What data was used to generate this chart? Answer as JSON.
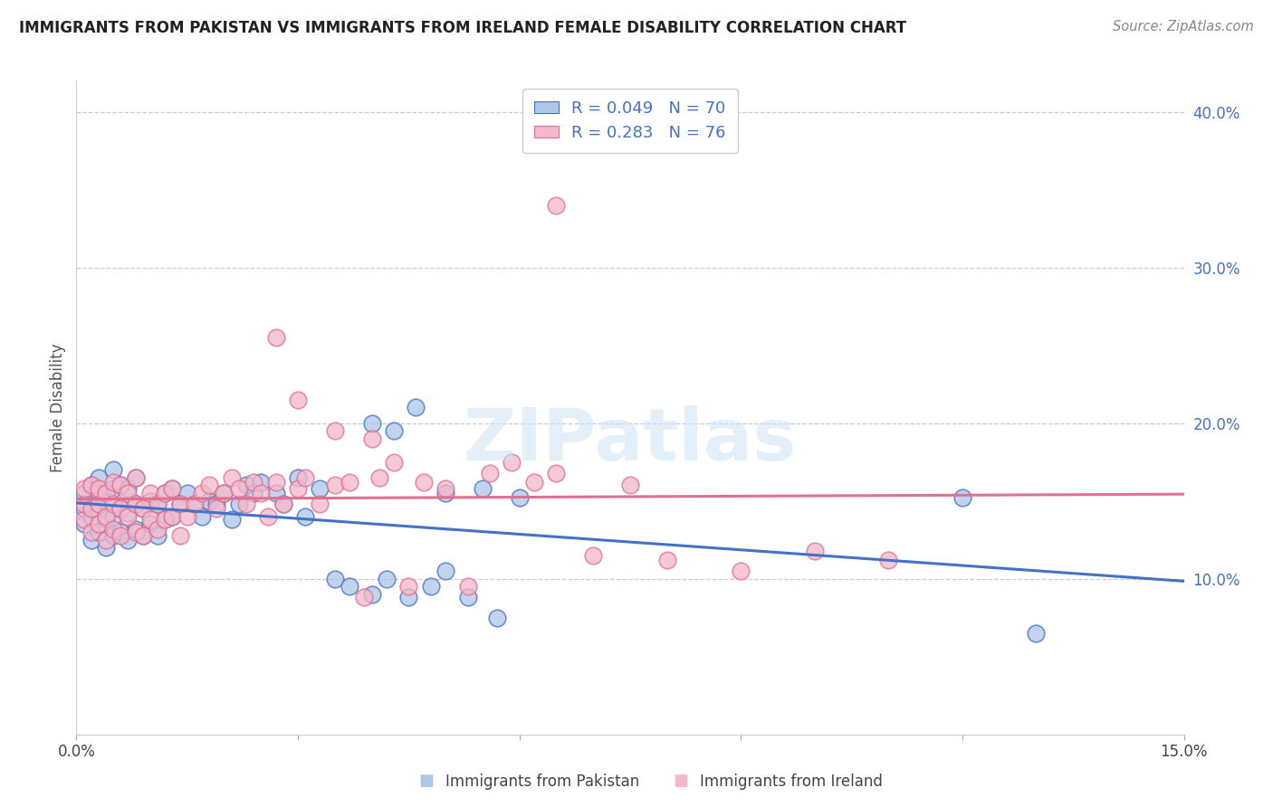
{
  "title": "IMMIGRANTS FROM PAKISTAN VS IMMIGRANTS FROM IRELAND FEMALE DISABILITY CORRELATION CHART",
  "source": "Source: ZipAtlas.com",
  "ylabel_label": "Female Disability",
  "legend_label1": "Immigrants from Pakistan",
  "legend_label2": "Immigrants from Ireland",
  "R1": 0.049,
  "N1": 70,
  "R2": 0.283,
  "N2": 76,
  "color_blue": "#aec6e8",
  "color_pink": "#f5b8cb",
  "color_blue_edge": "#4472c4",
  "color_pink_edge": "#e07090",
  "color_blue_text": "#4472c4",
  "xlim": [
    0.0,
    0.15
  ],
  "ylim": [
    0.0,
    0.42
  ],
  "y_ticks_right": [
    0.1,
    0.2,
    0.3,
    0.4
  ],
  "y_tick_labels_right": [
    "10.0%",
    "20.0%",
    "30.0%",
    "40.0%"
  ],
  "pakistan_x": [
    0.001,
    0.001,
    0.001,
    0.002,
    0.002,
    0.002,
    0.003,
    0.003,
    0.003,
    0.003,
    0.004,
    0.004,
    0.004,
    0.005,
    0.005,
    0.005,
    0.005,
    0.006,
    0.006,
    0.006,
    0.007,
    0.007,
    0.007,
    0.008,
    0.008,
    0.008,
    0.009,
    0.009,
    0.01,
    0.01,
    0.011,
    0.011,
    0.012,
    0.012,
    0.013,
    0.013,
    0.014,
    0.015,
    0.016,
    0.017,
    0.018,
    0.019,
    0.02,
    0.021,
    0.022,
    0.023,
    0.024,
    0.025,
    0.027,
    0.028,
    0.03,
    0.031,
    0.033,
    0.035,
    0.037,
    0.04,
    0.042,
    0.045,
    0.048,
    0.05,
    0.053,
    0.057,
    0.04,
    0.043,
    0.046,
    0.05,
    0.055,
    0.06,
    0.12,
    0.13
  ],
  "pakistan_y": [
    0.135,
    0.145,
    0.155,
    0.125,
    0.14,
    0.16,
    0.13,
    0.148,
    0.155,
    0.165,
    0.12,
    0.138,
    0.15,
    0.128,
    0.14,
    0.158,
    0.17,
    0.13,
    0.145,
    0.16,
    0.125,
    0.142,
    0.158,
    0.132,
    0.148,
    0.165,
    0.128,
    0.145,
    0.135,
    0.15,
    0.128,
    0.148,
    0.138,
    0.155,
    0.14,
    0.158,
    0.148,
    0.155,
    0.148,
    0.14,
    0.15,
    0.148,
    0.155,
    0.138,
    0.148,
    0.16,
    0.155,
    0.162,
    0.155,
    0.148,
    0.165,
    0.14,
    0.158,
    0.1,
    0.095,
    0.09,
    0.1,
    0.088,
    0.095,
    0.105,
    0.088,
    0.075,
    0.2,
    0.195,
    0.21,
    0.155,
    0.158,
    0.152,
    0.152,
    0.065
  ],
  "ireland_x": [
    0.001,
    0.001,
    0.001,
    0.002,
    0.002,
    0.002,
    0.003,
    0.003,
    0.003,
    0.004,
    0.004,
    0.004,
    0.005,
    0.005,
    0.005,
    0.006,
    0.006,
    0.006,
    0.007,
    0.007,
    0.008,
    0.008,
    0.008,
    0.009,
    0.009,
    0.01,
    0.01,
    0.011,
    0.011,
    0.012,
    0.012,
    0.013,
    0.013,
    0.014,
    0.014,
    0.015,
    0.016,
    0.017,
    0.018,
    0.019,
    0.02,
    0.021,
    0.022,
    0.023,
    0.024,
    0.025,
    0.026,
    0.027,
    0.028,
    0.03,
    0.031,
    0.033,
    0.035,
    0.037,
    0.039,
    0.041,
    0.043,
    0.045,
    0.047,
    0.05,
    0.053,
    0.056,
    0.059,
    0.062,
    0.065,
    0.07,
    0.075,
    0.08,
    0.09,
    0.1,
    0.027,
    0.03,
    0.035,
    0.04,
    0.065,
    0.11
  ],
  "ireland_y": [
    0.138,
    0.148,
    0.158,
    0.13,
    0.145,
    0.16,
    0.135,
    0.148,
    0.158,
    0.125,
    0.14,
    0.155,
    0.132,
    0.148,
    0.162,
    0.128,
    0.145,
    0.16,
    0.14,
    0.155,
    0.13,
    0.148,
    0.165,
    0.128,
    0.145,
    0.138,
    0.155,
    0.132,
    0.148,
    0.138,
    0.155,
    0.14,
    0.158,
    0.128,
    0.148,
    0.14,
    0.148,
    0.155,
    0.16,
    0.145,
    0.155,
    0.165,
    0.158,
    0.148,
    0.162,
    0.155,
    0.14,
    0.162,
    0.148,
    0.158,
    0.165,
    0.148,
    0.16,
    0.162,
    0.088,
    0.165,
    0.175,
    0.095,
    0.162,
    0.158,
    0.095,
    0.168,
    0.175,
    0.162,
    0.168,
    0.115,
    0.16,
    0.112,
    0.105,
    0.118,
    0.255,
    0.215,
    0.195,
    0.19,
    0.34,
    0.112
  ]
}
